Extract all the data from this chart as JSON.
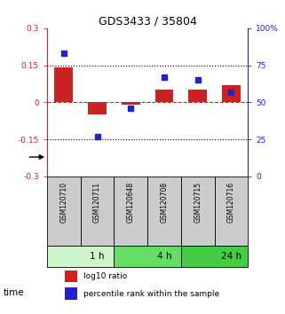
{
  "title": "GDS3433 / 35804",
  "samples": [
    "GSM120710",
    "GSM120711",
    "GSM120648",
    "GSM120708",
    "GSM120715",
    "GSM120716"
  ],
  "log10_ratio": [
    0.14,
    -0.05,
    -0.01,
    0.05,
    0.05,
    0.07
  ],
  "percentile_rank": [
    83,
    27,
    46,
    67,
    65,
    57
  ],
  "ylim_left": [
    -0.3,
    0.3
  ],
  "ylim_right": [
    0,
    100
  ],
  "yticks_left": [
    -0.3,
    -0.15,
    0,
    0.15,
    0.3
  ],
  "ytick_labels_left": [
    "-0.3",
    "-0.15",
    "0",
    "0.15",
    "0.3"
  ],
  "yticks_right": [
    0,
    25,
    50,
    75,
    100
  ],
  "ytick_labels_right": [
    "0",
    "25",
    "50",
    "75",
    "100%"
  ],
  "hlines_dotted": [
    0.15,
    -0.15
  ],
  "hline_dashed": 0.0,
  "bar_color": "#cc2222",
  "dot_color": "#2222cc",
  "zero_line_color": "#cc2222",
  "time_groups": [
    {
      "label": "1 h",
      "start": 0,
      "end": 2,
      "color": "#ccf5cc"
    },
    {
      "label": "4 h",
      "start": 2,
      "end": 4,
      "color": "#66dd66"
    },
    {
      "label": "24 h",
      "start": 4,
      "end": 6,
      "color": "#44cc44"
    }
  ],
  "legend_bar_label": "log10 ratio",
  "legend_dot_label": "percentile rank within the sample",
  "time_label": "time",
  "sample_box_color": "#cccccc",
  "bar_width": 0.55,
  "dot_size": 18
}
